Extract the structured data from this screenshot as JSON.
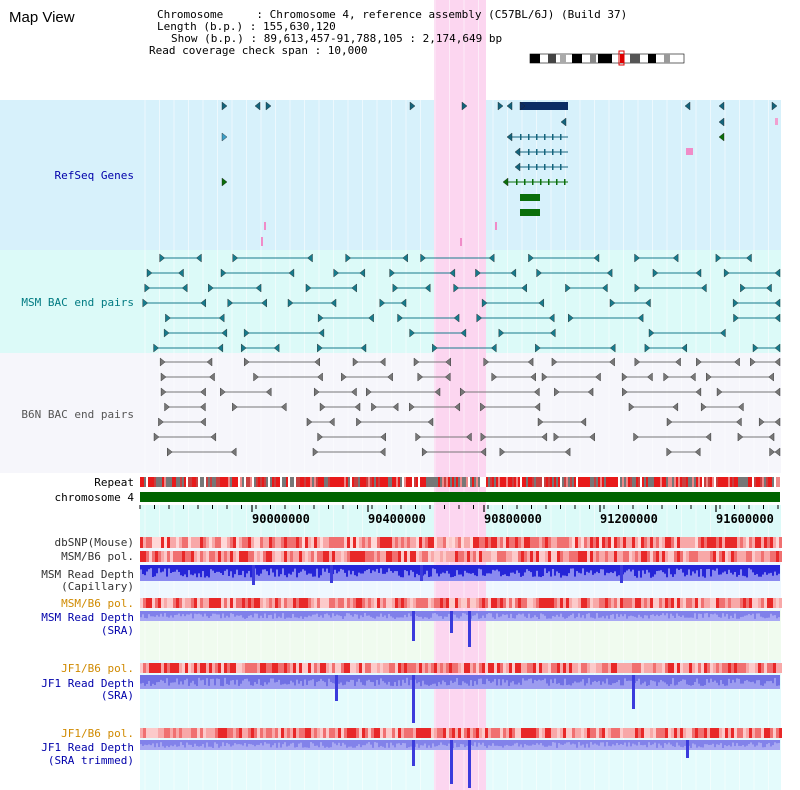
{
  "title": "Map View",
  "info": {
    "chromosome": "Chromosome     : Chromosome 4, reference assembly (C57BL/6J) (Build 37)",
    "length": "Length (b.p.) : 155,630,120",
    "show": "Show (b.p.) : 89,613,457-91,788,105 : 2,174,649 bp",
    "coverage": "Read coverage check span : 10,000"
  },
  "tracks": {
    "refseq": "RefSeq Genes",
    "msm_bac": "MSM BAC end pairs",
    "b6n_bac": "B6N BAC end pairs",
    "repeat": "Repeat",
    "chromosome": "chromosome 4",
    "dbsnp": "dbSNP(Mouse)",
    "msm_b6_pol_1": "MSM/B6 pol.",
    "msm_depth_cap_1": "MSM Read Depth",
    "msm_depth_cap_2": "(Capillary)",
    "msm_b6_pol_2": "MSM/B6 pol.",
    "msm_depth_sra_1": "MSM Read Depth",
    "msm_depth_sra_2": "(SRA)",
    "jf1_b6_pol_1": "JF1/B6 pol.",
    "jf1_depth_sra_1": "JF1 Read Depth",
    "jf1_depth_sra_2": "(SRA)",
    "jf1_b6_pol_2": "JF1/B6 pol.",
    "jf1_depth_trim_1": "JF1 Read Depth",
    "jf1_depth_trim_2": "(SRA trimmed)"
  },
  "axis": {
    "ticks": [
      "90000000",
      "90400000",
      "90800000",
      "91200000",
      "91600000"
    ]
  },
  "colors": {
    "refseq_bg": "#d7f1fb",
    "msm_bac_bg": "#dcfaf8",
    "b6n_bac_bg": "#f6f6fb",
    "highlight": "#fcd6f0",
    "gene": "#14647c",
    "gene_dark": "#0c2c64",
    "gene_green": "#0a6e0a",
    "chromosome_bar": "#006400",
    "label_blue": "#0000aa",
    "label_orange": "#d08a00",
    "depth_blue": "#3b3bdc",
    "depth_light": "#8d8df0"
  }
}
